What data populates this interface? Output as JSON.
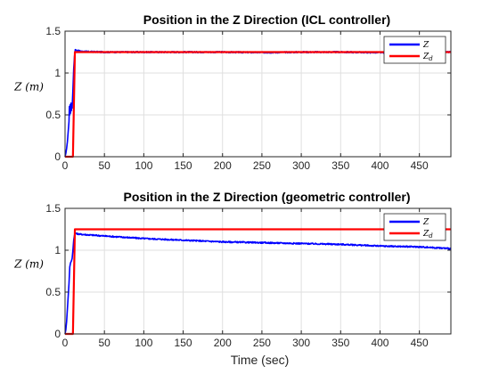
{
  "chart_data": [
    {
      "type": "line",
      "title": "Position in the Z Direction (ICL controller)",
      "ylabel": "Z (m)",
      "xlabel": "",
      "xlim": [
        0,
        490
      ],
      "ylim": [
        0,
        1.5
      ],
      "xticks": [
        0,
        50,
        100,
        150,
        200,
        250,
        300,
        350,
        400,
        450
      ],
      "yticks": [
        0,
        0.5,
        1,
        1.5
      ],
      "ytick_labels": [
        "0",
        "0.5",
        "1",
        "1.5"
      ],
      "grid": true,
      "legend": {
        "position": "top-right",
        "entries": [
          "Z",
          "Z_d"
        ]
      },
      "series": [
        {
          "name": "Z",
          "color": "#0000ff",
          "points": [
            [
              0,
              0
            ],
            [
              1,
              0.04
            ],
            [
              2,
              0.1
            ],
            [
              3,
              0.18
            ],
            [
              4,
              0.3
            ],
            [
              5,
              0.42
            ],
            [
              5.5,
              0.6
            ],
            [
              6,
              0.5
            ],
            [
              6.5,
              0.62
            ],
            [
              7,
              0.52
            ],
            [
              7.5,
              0.64
            ],
            [
              8,
              0.55
            ],
            [
              8.5,
              0.62
            ],
            [
              9,
              0.58
            ],
            [
              10,
              0.8
            ],
            [
              11,
              1.05
            ],
            [
              12,
              1.2
            ],
            [
              13,
              1.28
            ],
            [
              15,
              1.27
            ],
            [
              20,
              1.26
            ],
            [
              30,
              1.255
            ],
            [
              50,
              1.25
            ],
            [
              100,
              1.25
            ],
            [
              150,
              1.25
            ],
            [
              200,
              1.25
            ],
            [
              250,
              1.245
            ],
            [
              300,
              1.25
            ],
            [
              350,
              1.25
            ],
            [
              400,
              1.245
            ],
            [
              450,
              1.25
            ],
            [
              490,
              1.25
            ]
          ]
        },
        {
          "name": "Z_d",
          "color": "#ff0000",
          "points": [
            [
              0,
              0
            ],
            [
              10,
              0
            ],
            [
              12.5,
              1.25
            ],
            [
              490,
              1.25
            ]
          ]
        }
      ]
    },
    {
      "type": "line",
      "title": "Position in the Z Direction (geometric controller)",
      "ylabel": "Z (m)",
      "xlabel": "Time (sec)",
      "xlim": [
        0,
        490
      ],
      "ylim": [
        0,
        1.5
      ],
      "xticks": [
        0,
        50,
        100,
        150,
        200,
        250,
        300,
        350,
        400,
        450
      ],
      "yticks": [
        0,
        0.5,
        1,
        1.5
      ],
      "ytick_labels": [
        "0",
        "0.5",
        "1",
        "1.5"
      ],
      "grid": true,
      "legend": {
        "position": "top-right",
        "entries": [
          "Z",
          "Z_d"
        ]
      },
      "series": [
        {
          "name": "Z",
          "color": "#0000ff",
          "points": [
            [
              0,
              0
            ],
            [
              1,
              0.05
            ],
            [
              2,
              0.15
            ],
            [
              3,
              0.3
            ],
            [
              4,
              0.45
            ],
            [
              5,
              0.6
            ],
            [
              6,
              0.8
            ],
            [
              7,
              0.85
            ],
            [
              8,
              0.87
            ],
            [
              9,
              0.9
            ],
            [
              10,
              1.0
            ],
            [
              11,
              1.12
            ],
            [
              12,
              1.18
            ],
            [
              13,
              1.2
            ],
            [
              20,
              1.19
            ],
            [
              50,
              1.17
            ],
            [
              100,
              1.14
            ],
            [
              150,
              1.12
            ],
            [
              200,
              1.1
            ],
            [
              250,
              1.09
            ],
            [
              300,
              1.08
            ],
            [
              350,
              1.07
            ],
            [
              400,
              1.05
            ],
            [
              450,
              1.04
            ],
            [
              490,
              1.02
            ]
          ]
        },
        {
          "name": "Z_d",
          "color": "#ff0000",
          "points": [
            [
              0,
              0
            ],
            [
              10,
              0
            ],
            [
              12.5,
              1.25
            ],
            [
              490,
              1.25
            ]
          ]
        }
      ]
    }
  ]
}
